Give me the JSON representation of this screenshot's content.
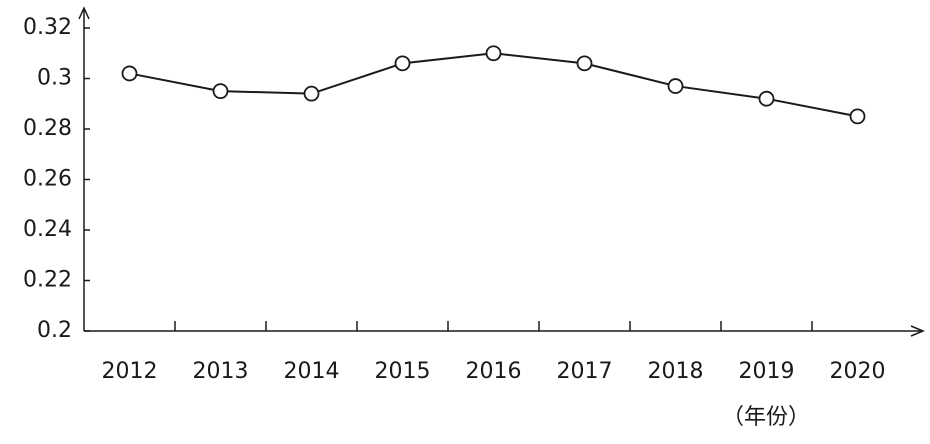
{
  "chart_data": {
    "type": "line",
    "categories": [
      "2012",
      "2013",
      "2014",
      "2015",
      "2016",
      "2017",
      "2018",
      "2019",
      "2020"
    ],
    "values": [
      0.302,
      0.295,
      0.294,
      0.306,
      0.31,
      0.306,
      0.297,
      0.292,
      0.285
    ],
    "color": "#1a1a1a",
    "ylim": [
      0.2,
      0.32
    ],
    "yticks": [
      0.2,
      0.22,
      0.24,
      0.26,
      0.28,
      0.3,
      0.32
    ],
    "x_label": "（年份）",
    "grid": false
  }
}
